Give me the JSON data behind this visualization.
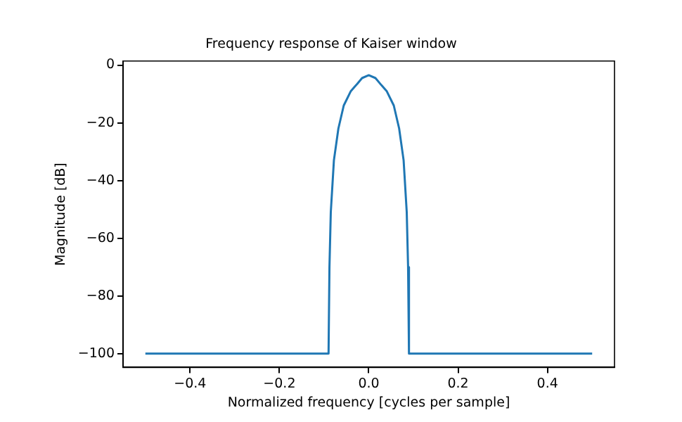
{
  "chart_data": {
    "type": "line",
    "title": "Frequency response of Kaiser window",
    "xlabel": "Normalized frequency [cycles per sample]",
    "ylabel": "Magnitude [dB]",
    "x": [
      -0.5,
      -0.09,
      -0.088,
      -0.085,
      -0.078,
      -0.068,
      -0.056,
      -0.04,
      -0.028,
      -0.015,
      0,
      0.015,
      0.028,
      0.04,
      0.056,
      0.068,
      0.078,
      0.085,
      0.088,
      0.09,
      0.5
    ],
    "series": [
      {
        "color": "#1f77b4",
        "values": [
          -100,
          -100,
          -70,
          -51,
          -33,
          -22,
          -14,
          -9,
          -6.9,
          -4.5,
          -3.5,
          -4.5,
          -6.9,
          -9,
          -14,
          -22,
          -33,
          -51,
          -70,
          -100,
          -100
        ]
      }
    ],
    "xlim": [
      -0.55,
      0.55
    ],
    "ylim": [
      -104.8,
      1.4
    ],
    "xticks": [
      {
        "value": -0.4,
        "label": "−0.4"
      },
      {
        "value": -0.2,
        "label": "−0.2"
      },
      {
        "value": 0,
        "label": "0.0"
      },
      {
        "value": 0.2,
        "label": "0.2"
      },
      {
        "value": 0.4,
        "label": "0.4"
      }
    ],
    "yticks": [
      0,
      {
        "value": -20,
        "label": "−20"
      },
      {
        "value": -40,
        "label": "−40"
      },
      {
        "value": -60,
        "label": "−60"
      },
      {
        "value": -80,
        "label": "−80"
      },
      {
        "value": -100,
        "label": "−100"
      }
    ],
    "grid": false,
    "legend": false,
    "marker": "none",
    "line_style": "solid"
  }
}
